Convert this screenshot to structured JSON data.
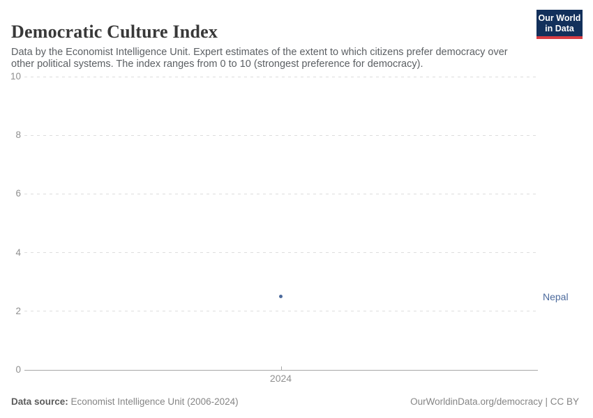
{
  "header": {
    "title": "Democratic Culture Index",
    "subtitle": "Data by the Economist Intelligence Unit. Expert estimates of the extent to which citizens prefer democracy over other political systems. The index ranges from 0 to 10 (strongest preference for democracy).",
    "logo": {
      "line1": "Our World",
      "line2": "in Data",
      "background_color": "#12305B",
      "accent_color": "#D93D43"
    }
  },
  "chart_data": {
    "type": "scatter",
    "title": "Democratic Culture Index",
    "x": [
      2024
    ],
    "x_tick_labels": [
      "2024"
    ],
    "series": [
      {
        "name": "Nepal",
        "values": [
          2.5
        ],
        "color": "#4C6A9C"
      }
    ],
    "y_ticks": [
      0,
      2,
      4,
      6,
      8,
      10
    ],
    "ylim": [
      0,
      10
    ],
    "xlabel": "",
    "ylabel": "",
    "grid": "horizontal-dashed",
    "legend_position": "entity label right of plot area"
  },
  "footer": {
    "source_label": "Data source:",
    "source_value": " Economist Intelligence Unit (2006-2024)",
    "credit": "OurWorldinData.org/democracy | CC BY"
  },
  "colors": {
    "title": "#383838",
    "subtitle": "#5B5F63",
    "tick_label": "#8F8F8F",
    "gridline": "#DDDDDD",
    "axis_line": "#A7A7A7",
    "series_blue": "#4C6A9C"
  }
}
